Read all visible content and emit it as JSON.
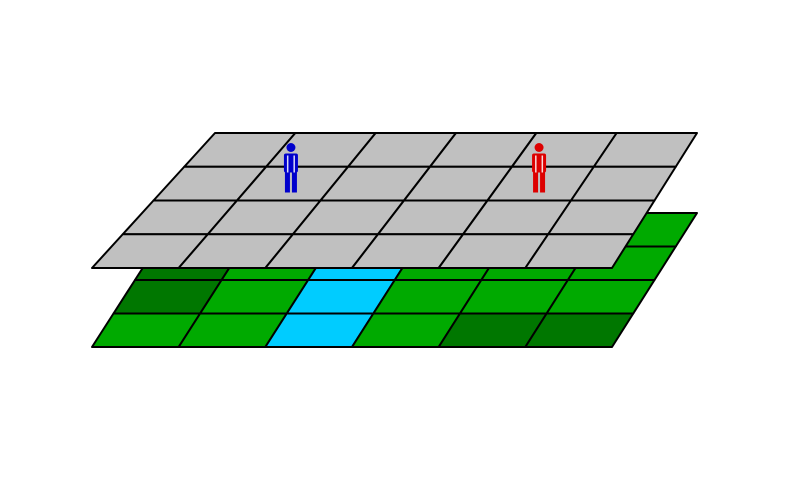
{
  "colors": {
    "background": "#ffffff",
    "grid_line": "#000000",
    "grass": "#00aa00",
    "dark_grass": "#007700",
    "water": "#00ccff",
    "tile_gray": "#c0c0c0",
    "person_blue": "#0000cc",
    "person_red": "#dd0000"
  },
  "ground_layer": {
    "rows": 4,
    "cols": 6,
    "cells": [
      [
        "dark_grass",
        "grass",
        "water",
        "grass",
        "grass",
        "grass"
      ],
      [
        "dark_grass",
        "grass",
        "water",
        "grass",
        "grass",
        "grass"
      ],
      [
        "dark_grass",
        "grass",
        "water",
        "grass",
        "grass",
        "grass"
      ],
      [
        "grass",
        "grass",
        "water",
        "grass",
        "dark_grass",
        "dark_grass"
      ]
    ]
  },
  "top_layer": {
    "rows": 4,
    "cols": 6,
    "tile": "tile_gray"
  },
  "figures": [
    {
      "name": "person-blue-icon",
      "color": "person_blue",
      "cell": [
        1,
        1
      ]
    },
    {
      "name": "person-red-icon",
      "color": "person_red",
      "cell": [
        1,
        4
      ]
    }
  ]
}
